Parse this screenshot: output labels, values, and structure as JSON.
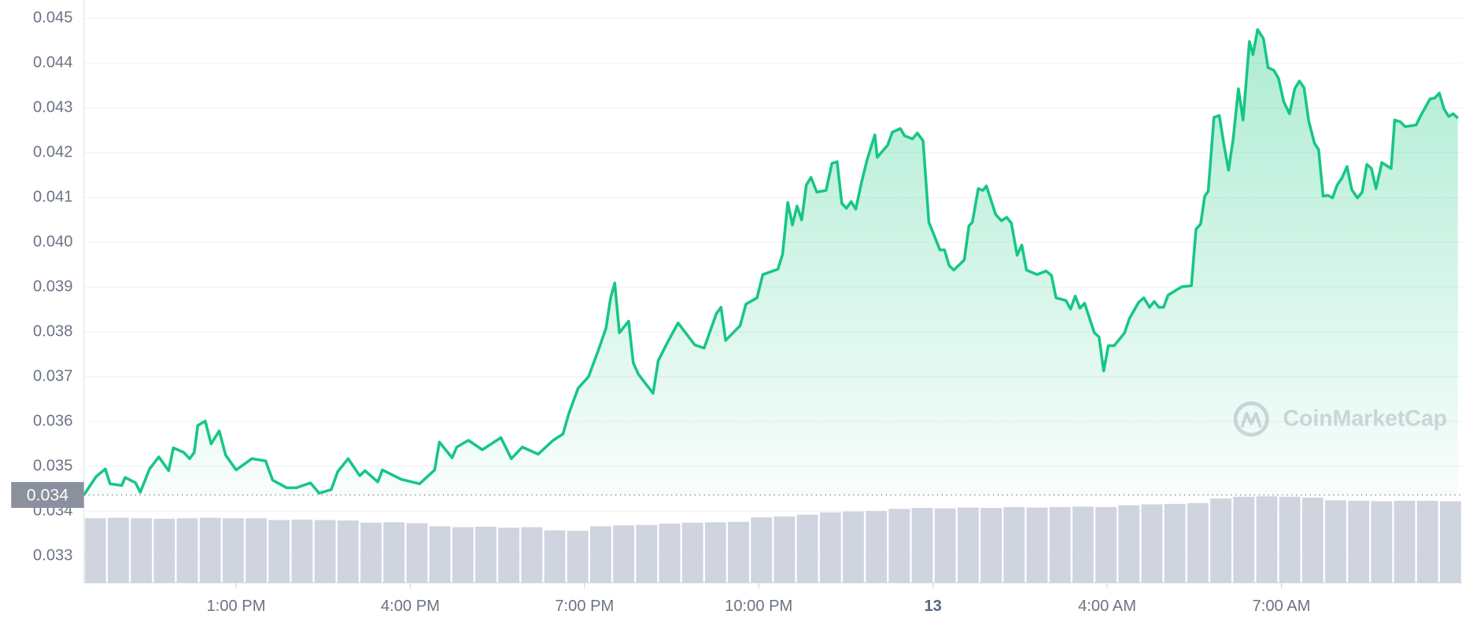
{
  "chart_data": {
    "type": "line",
    "series": [
      {
        "color": "#16c784",
        "x": [
          10.38,
          10.59,
          10.75,
          10.83,
          11.03,
          11.09,
          11.27,
          11.35,
          11.51,
          11.67,
          11.84,
          11.92,
          12.1,
          12.2,
          12.28,
          12.34,
          12.47,
          12.57,
          12.71,
          12.82,
          13.0,
          13.27,
          13.51,
          13.63,
          13.87,
          14.04,
          14.28,
          14.43,
          14.64,
          14.75,
          14.93,
          15.13,
          15.22,
          15.44,
          15.52,
          15.84,
          16.16,
          16.42,
          16.5,
          16.72,
          16.8,
          17.0,
          17.24,
          17.56,
          17.74,
          17.93,
          18.2,
          18.46,
          18.63,
          18.73,
          18.89,
          19.07,
          19.23,
          19.37,
          19.45,
          19.52,
          19.6,
          19.76,
          19.84,
          19.93,
          20.18,
          20.27,
          20.43,
          20.61,
          20.9,
          21.06,
          21.27,
          21.35,
          21.43,
          21.68,
          21.78,
          21.97,
          22.07,
          22.33,
          22.41,
          22.5,
          22.58,
          22.66,
          22.74,
          22.82,
          22.9,
          23.0,
          23.16,
          23.26,
          23.35,
          23.43,
          23.51,
          23.59,
          23.67,
          23.77,
          23.87,
          24.0,
          24.04,
          24.22,
          24.3,
          24.44,
          24.51,
          24.65,
          24.73,
          24.83,
          24.93,
          25.12,
          25.2,
          25.28,
          25.36,
          25.54,
          25.62,
          25.68,
          25.78,
          25.86,
          25.92,
          26.08,
          26.18,
          26.27,
          26.35,
          26.45,
          26.53,
          26.61,
          26.79,
          26.95,
          27.04,
          27.12,
          27.29,
          27.37,
          27.45,
          27.53,
          27.61,
          27.78,
          27.86,
          27.94,
          28.02,
          28.12,
          28.3,
          28.38,
          28.54,
          28.63,
          28.73,
          28.81,
          28.89,
          28.97,
          29.05,
          29.21,
          29.29,
          29.45,
          29.53,
          29.61,
          29.68,
          29.74,
          29.84,
          29.93,
          30.01,
          30.09,
          30.17,
          30.26,
          30.34,
          30.45,
          30.51,
          30.59,
          30.69,
          30.77,
          30.87,
          30.95,
          31.04,
          31.14,
          31.23,
          31.31,
          31.39,
          31.47,
          31.57,
          31.64,
          31.72,
          31.8,
          31.88,
          31.96,
          32.04,
          32.13,
          32.21,
          32.31,
          32.39,
          32.47,
          32.55,
          32.63,
          32.73,
          32.89,
          32.95,
          33.05,
          33.13,
          33.32,
          33.4,
          33.56,
          33.64,
          33.72,
          33.8,
          33.88,
          33.96,
          34.04
        ],
        "values": [
          0.03436,
          0.03477,
          0.03494,
          0.03461,
          0.03457,
          0.03475,
          0.03463,
          0.03442,
          0.03494,
          0.03521,
          0.0349,
          0.03541,
          0.03531,
          0.03517,
          0.03531,
          0.03591,
          0.03601,
          0.0355,
          0.03579,
          0.03525,
          0.03492,
          0.03517,
          0.03512,
          0.03469,
          0.03452,
          0.03452,
          0.03463,
          0.0344,
          0.03448,
          0.03488,
          0.03517,
          0.03479,
          0.0349,
          0.03465,
          0.03492,
          0.03471,
          0.03461,
          0.03492,
          0.03554,
          0.03519,
          0.03543,
          0.03558,
          0.03537,
          0.03564,
          0.03517,
          0.03543,
          0.03527,
          0.03558,
          0.03572,
          0.03618,
          0.03674,
          0.037,
          0.03756,
          0.03808,
          0.03876,
          0.03909,
          0.03798,
          0.03824,
          0.03731,
          0.03705,
          0.03663,
          0.03736,
          0.03777,
          0.0382,
          0.03771,
          0.03764,
          0.03841,
          0.03855,
          0.03781,
          0.03814,
          0.03862,
          0.03876,
          0.03928,
          0.0394,
          0.03973,
          0.04089,
          0.04039,
          0.04081,
          0.0405,
          0.04128,
          0.04145,
          0.04112,
          0.04116,
          0.04176,
          0.0418,
          0.04087,
          0.04076,
          0.04091,
          0.04074,
          0.04134,
          0.04186,
          0.0424,
          0.0419,
          0.04217,
          0.04246,
          0.04254,
          0.04238,
          0.04231,
          0.04244,
          0.04227,
          0.04045,
          0.03983,
          0.03983,
          0.03948,
          0.03938,
          0.03961,
          0.04037,
          0.04045,
          0.0412,
          0.04116,
          0.04126,
          0.04062,
          0.04048,
          0.04056,
          0.04043,
          0.03971,
          0.03994,
          0.03938,
          0.03928,
          0.03936,
          0.03926,
          0.03876,
          0.0387,
          0.03851,
          0.0388,
          0.03853,
          0.03864,
          0.03798,
          0.03789,
          0.03713,
          0.03769,
          0.03769,
          0.03798,
          0.03829,
          0.03866,
          0.03876,
          0.03855,
          0.03868,
          0.03855,
          0.03855,
          0.03882,
          0.03895,
          0.03901,
          0.03903,
          0.04029,
          0.04041,
          0.04103,
          0.04114,
          0.04279,
          0.04283,
          0.04219,
          0.04161,
          0.04231,
          0.04343,
          0.04273,
          0.04448,
          0.04419,
          0.04475,
          0.04455,
          0.0439,
          0.04384,
          0.04366,
          0.04314,
          0.04287,
          0.04343,
          0.0436,
          0.04345,
          0.04271,
          0.04221,
          0.04207,
          0.04103,
          0.04105,
          0.04099,
          0.04128,
          0.04143,
          0.04169,
          0.04118,
          0.04099,
          0.04112,
          0.04174,
          0.04165,
          0.0412,
          0.04178,
          0.04165,
          0.04273,
          0.04269,
          0.04258,
          0.04262,
          0.04283,
          0.0432,
          0.04322,
          0.04333,
          0.04298,
          0.04281,
          0.04287,
          0.04277
        ]
      }
    ],
    "xlim": [
      10.38,
      34.11
    ],
    "xticks": [
      {
        "value": 13,
        "label": "1:00 PM"
      },
      {
        "value": 16,
        "label": "4:00 PM"
      },
      {
        "value": 19,
        "label": "7:00 PM"
      },
      {
        "value": 22,
        "label": "10:00 PM"
      },
      {
        "value": 25,
        "label": "13"
      },
      {
        "value": 28,
        "label": "4:00 AM"
      },
      {
        "value": 31,
        "label": "7:00 AM"
      }
    ],
    "ylim": [
      0.0324,
      0.04541
    ],
    "yticks": [
      0.033,
      0.034,
      0.035,
      0.036,
      0.037,
      0.038,
      0.039,
      {
        "value": 0.04,
        "label": "0.040"
      },
      0.041,
      0.042,
      0.043,
      0.044,
      0.045
    ],
    "grid": true,
    "price_line": 0.03436,
    "price_label": "0.034",
    "volume": {
      "color": "#cfd4de",
      "values": [
        0.03384,
        0.03385,
        0.03384,
        0.03383,
        0.03384,
        0.03385,
        0.03384,
        0.03384,
        0.0338,
        0.03381,
        0.0338,
        0.03379,
        0.03374,
        0.03375,
        0.03373,
        0.03366,
        0.03364,
        0.03365,
        0.03363,
        0.03364,
        0.03357,
        0.03356,
        0.03366,
        0.03368,
        0.03369,
        0.03372,
        0.03374,
        0.03375,
        0.03376,
        0.03386,
        0.03388,
        0.03392,
        0.03397,
        0.03399,
        0.034,
        0.03405,
        0.03407,
        0.03406,
        0.03408,
        0.03407,
        0.03409,
        0.03408,
        0.03409,
        0.0341,
        0.03409,
        0.03413,
        0.03415,
        0.03416,
        0.03418,
        0.03428,
        0.03432,
        0.03433,
        0.03432,
        0.0343,
        0.03424,
        0.03423,
        0.03422,
        0.03423,
        0.03423,
        0.03422
      ]
    },
    "watermark": "CoinMarketCap"
  }
}
